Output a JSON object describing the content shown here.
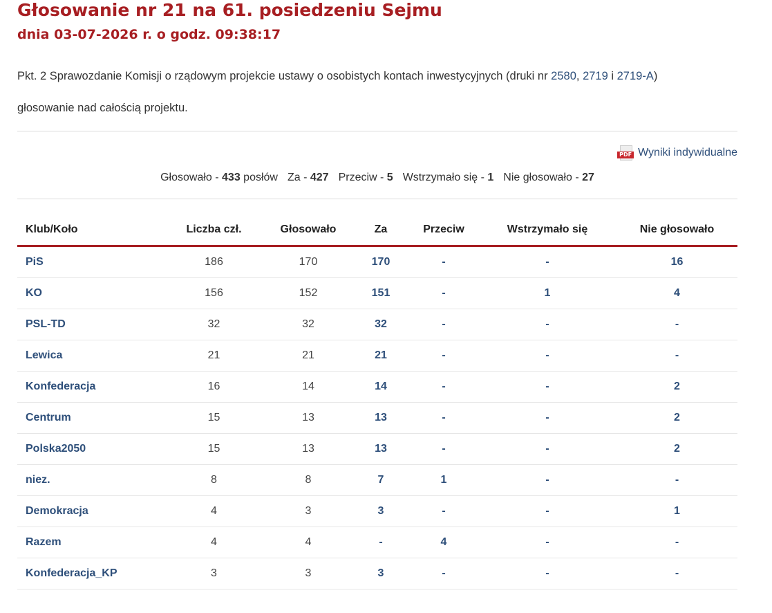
{
  "header": {
    "title": "Głosowanie nr 21 na 61. posiedzeniu Sejmu",
    "subtitle": "dnia 03-07-2026 r. o godz. 09:38:17"
  },
  "description": {
    "text_before": "Pkt. 2 Sprawozdanie Komisji o rządowym projekcie ustawy o osobistych kontach inwestycyjnych (druki nr ",
    "link1": "2580",
    "sep1": ", ",
    "link2": "2719",
    "sep2": " i ",
    "link3": "2719-A",
    "text_after": ")",
    "line2": "głosowanie nad całością projektu."
  },
  "pdf": {
    "icon": "pdf-icon",
    "icon_text": "PDF",
    "label": "Wyniki indywidualne"
  },
  "summary": {
    "voted_label": "Głosowało - ",
    "voted_value": "433",
    "voted_suffix": " posłów",
    "for_label": "Za - ",
    "for_value": "427",
    "against_label": "Przeciw - ",
    "against_value": "5",
    "abstain_label": "Wstrzymało się - ",
    "abstain_value": "1",
    "absent_label": "Nie głosowało - ",
    "absent_value": "27"
  },
  "table": {
    "headers": [
      "Klub/Koło",
      "Liczba czł.",
      "Głosowało",
      "Za",
      "Przeciw",
      "Wstrzymało się",
      "Nie głosowało"
    ],
    "rows": [
      [
        "PiS",
        "186",
        "170",
        "170",
        "-",
        "-",
        "16"
      ],
      [
        "KO",
        "156",
        "152",
        "151",
        "-",
        "1",
        "4"
      ],
      [
        "PSL-TD",
        "32",
        "32",
        "32",
        "-",
        "-",
        "-"
      ],
      [
        "Lewica",
        "21",
        "21",
        "21",
        "-",
        "-",
        "-"
      ],
      [
        "Konfederacja",
        "16",
        "14",
        "14",
        "-",
        "-",
        "2"
      ],
      [
        "Centrum",
        "15",
        "13",
        "13",
        "-",
        "-",
        "2"
      ],
      [
        "Polska2050",
        "15",
        "13",
        "13",
        "-",
        "-",
        "2"
      ],
      [
        "niez.",
        "8",
        "8",
        "7",
        "1",
        "-",
        "-"
      ],
      [
        "Demokracja",
        "4",
        "3",
        "3",
        "-",
        "-",
        "1"
      ],
      [
        "Razem",
        "4",
        "4",
        "-",
        "4",
        "-",
        "-"
      ],
      [
        "Konfederacja_KP",
        "3",
        "3",
        "3",
        "-",
        "-",
        "-"
      ]
    ]
  },
  "colors": {
    "accent": "#a71e22",
    "link": "#2e4f7a"
  }
}
